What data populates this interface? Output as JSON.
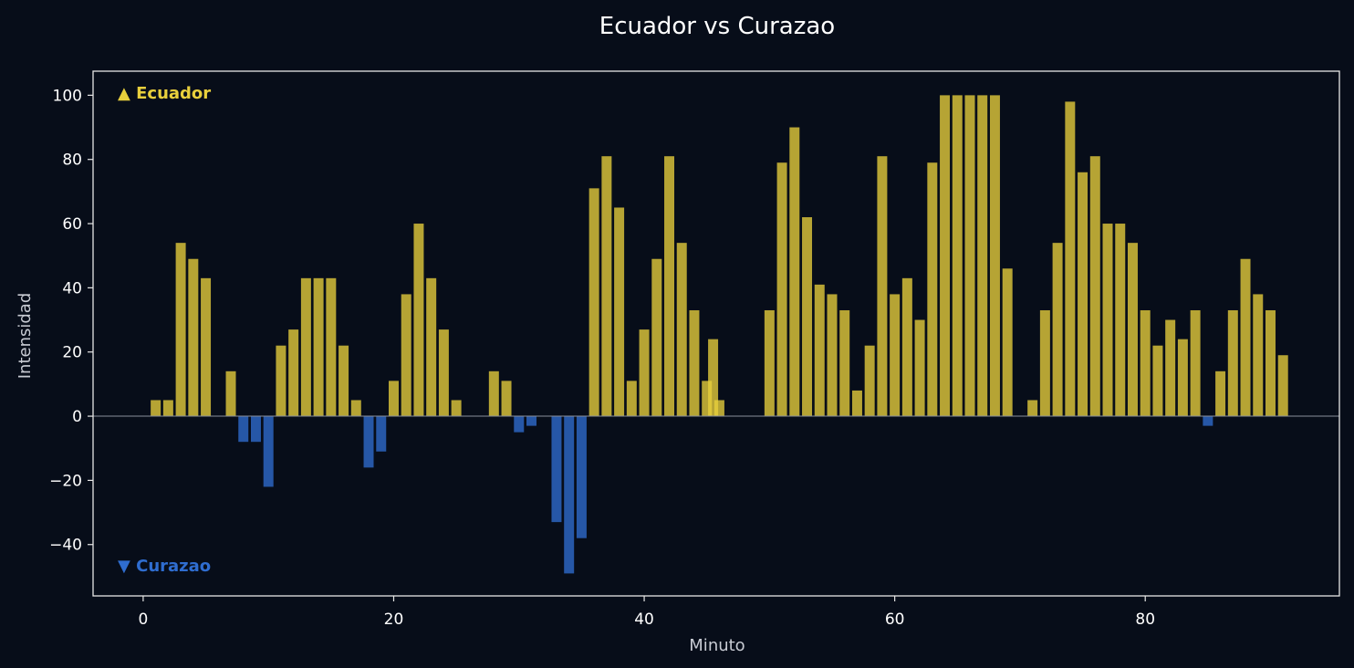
{
  "chart_data": {
    "type": "bar",
    "title": "Ecuador vs Curazao",
    "xlabel": "Minuto",
    "ylabel": "Intensidad",
    "xlim": [
      -4,
      95.5
    ],
    "ylim": [
      -56,
      107.5
    ],
    "xticks": [
      0,
      20,
      40,
      60,
      80
    ],
    "yticks": [
      -40,
      -20,
      0,
      20,
      40,
      60,
      80,
      100
    ],
    "grid": false,
    "legend": {
      "placement": "inside-left"
    },
    "series": [
      {
        "name": "▲ Ecuador",
        "color": "#e8cf3c",
        "points": [
          [
            1,
            5
          ],
          [
            2,
            5
          ],
          [
            3,
            54
          ],
          [
            4,
            49
          ],
          [
            5,
            43
          ],
          [
            7,
            14
          ],
          [
            11,
            22
          ],
          [
            12,
            27
          ],
          [
            13,
            43
          ],
          [
            14,
            43
          ],
          [
            15,
            43
          ],
          [
            16,
            22
          ],
          [
            17,
            5
          ],
          [
            20,
            11
          ],
          [
            21,
            38
          ],
          [
            22,
            60
          ],
          [
            23,
            43
          ],
          [
            24,
            27
          ],
          [
            25,
            5
          ],
          [
            28,
            14
          ],
          [
            29,
            11
          ],
          [
            36,
            71
          ],
          [
            37,
            81
          ],
          [
            38,
            65
          ],
          [
            39,
            11
          ],
          [
            40,
            27
          ],
          [
            41,
            49
          ],
          [
            42,
            81
          ],
          [
            43,
            54
          ],
          [
            44,
            33
          ],
          [
            45,
            11
          ],
          [
            45.5,
            24
          ],
          [
            46,
            5
          ],
          [
            50,
            33
          ],
          [
            51,
            79
          ],
          [
            52,
            90
          ],
          [
            53,
            62
          ],
          [
            54,
            41
          ],
          [
            55,
            38
          ],
          [
            56,
            33
          ],
          [
            57,
            8
          ],
          [
            58,
            22
          ],
          [
            59,
            81
          ],
          [
            60,
            38
          ],
          [
            61,
            43
          ],
          [
            62,
            30
          ],
          [
            63,
            79
          ],
          [
            64,
            100
          ],
          [
            65,
            100
          ],
          [
            66,
            100
          ],
          [
            67,
            100
          ],
          [
            68,
            100
          ],
          [
            69,
            46
          ],
          [
            71,
            5
          ],
          [
            72,
            33
          ],
          [
            73,
            54
          ],
          [
            74,
            98
          ],
          [
            75,
            76
          ],
          [
            76,
            81
          ],
          [
            77,
            60
          ],
          [
            78,
            60
          ],
          [
            79,
            54
          ],
          [
            80,
            33
          ],
          [
            81,
            22
          ],
          [
            82,
            30
          ],
          [
            83,
            24
          ],
          [
            84,
            33
          ],
          [
            86,
            14
          ],
          [
            87,
            33
          ],
          [
            88,
            49
          ],
          [
            89,
            38
          ],
          [
            90,
            33
          ],
          [
            91,
            19
          ]
        ]
      },
      {
        "name": "▼ Curazao",
        "color": "#2f6dd0",
        "points": [
          [
            8,
            -8
          ],
          [
            9,
            -8
          ],
          [
            10,
            -22
          ],
          [
            18,
            -16
          ],
          [
            19,
            -11
          ],
          [
            30,
            -5
          ],
          [
            31,
            -3
          ],
          [
            33,
            -33
          ],
          [
            34,
            -49
          ],
          [
            35,
            -38
          ],
          [
            85,
            -3
          ]
        ]
      }
    ]
  }
}
